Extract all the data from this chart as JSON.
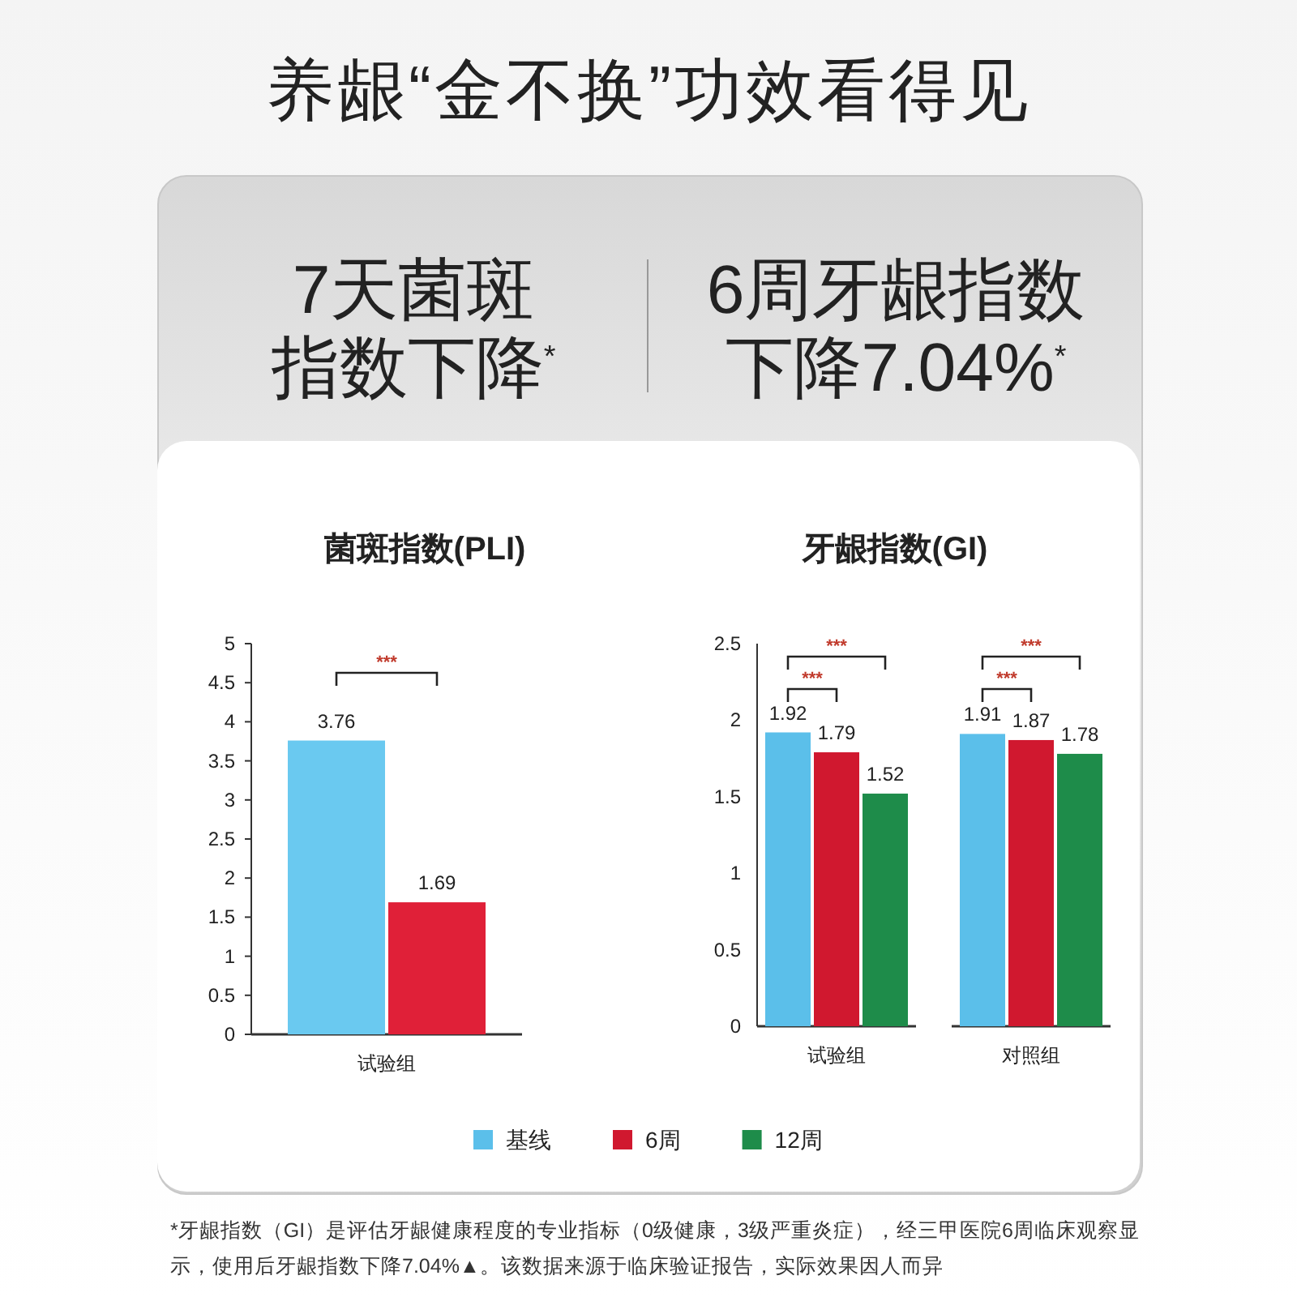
{
  "chart_data": [
    {
      "type": "bar",
      "title": "菌斑指数(PLI)",
      "categories": [
        "试验组"
      ],
      "series": [
        {
          "color": "#6ac9f0",
          "values": [
            3.76
          ]
        },
        {
          "color": "#e02038",
          "values": [
            1.69
          ]
        }
      ],
      "ylim": [
        0,
        5
      ],
      "yticks": [
        0,
        0.5,
        1,
        1.5,
        2,
        2.5,
        3,
        3.5,
        4,
        4.5,
        5
      ],
      "data_labels": true,
      "legend": false,
      "annotations": [
        "养龈“金不换”功效看得见",
        "7天菌斑指数下降$^{*}$",
        "6周牙龈指数下降7.04%$^{*}$",
        "***"
      ]
    },
    {
      "type": "bar",
      "title": "牙龈指数(GI)",
      "categories": [
        "试验组",
        "对照组"
      ],
      "series": [
        {
          "name": "基线",
          "color": "#5bbfea",
          "values": [
            1.92,
            1.91
          ]
        },
        {
          "name": "6周",
          "color": "#d0182f",
          "values": [
            1.79,
            1.87
          ]
        },
        {
          "name": "12周",
          "color": "#1e8c4a",
          "values": [
            1.52,
            1.78
          ]
        }
      ],
      "ylim": [
        0,
        2.5
      ],
      "yticks": [
        0,
        0.5,
        1,
        1.5,
        2,
        2.5
      ],
      "data_labels": true,
      "legend": "bottom",
      "annotations": [
        "***",
        "***",
        "***",
        "***",
        "*牙龈指数（GI）是评估牙龈健康程度的专业指标（0级健康，3级严重炎症），经三甲医院6周临床观察显示，使用后牙龈指数下降7.04%▲。该数据来源于临床验证报告，实际效果因人而异"
      ]
    }
  ]
}
